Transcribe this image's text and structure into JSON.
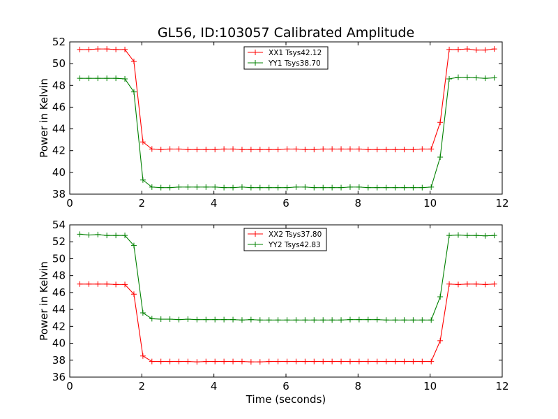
{
  "chart_data": [
    {
      "type": "line",
      "title": "GL56, ID:103057 Calibrated Amplitude",
      "xlabel": "",
      "ylabel": "Power in Kelvin",
      "xlim": [
        0,
        12
      ],
      "ylim": [
        38,
        52
      ],
      "xticks": [
        0,
        2,
        4,
        6,
        8,
        10,
        12
      ],
      "yticks": [
        38,
        40,
        42,
        44,
        46,
        48,
        50,
        52
      ],
      "legend_position": "top-center",
      "x": [
        0.28,
        0.53,
        0.78,
        1.03,
        1.28,
        1.53,
        1.78,
        2.03,
        2.28,
        2.53,
        2.78,
        3.03,
        3.28,
        3.53,
        3.78,
        4.03,
        4.28,
        4.53,
        4.78,
        5.03,
        5.28,
        5.53,
        5.78,
        6.03,
        6.28,
        6.53,
        6.78,
        7.03,
        7.28,
        7.53,
        7.78,
        8.03,
        8.28,
        8.53,
        8.78,
        9.03,
        9.28,
        9.53,
        9.78,
        10.03,
        10.28,
        10.53,
        10.78,
        11.03,
        11.28,
        11.53,
        11.78
      ],
      "series": [
        {
          "name": "XX1 Tsys42.12",
          "color": "#ff0000",
          "values": [
            51.3,
            51.3,
            51.35,
            51.35,
            51.3,
            51.3,
            50.2,
            42.8,
            42.15,
            42.1,
            42.15,
            42.15,
            42.1,
            42.1,
            42.1,
            42.1,
            42.15,
            42.15,
            42.1,
            42.1,
            42.1,
            42.1,
            42.1,
            42.15,
            42.15,
            42.1,
            42.1,
            42.15,
            42.15,
            42.15,
            42.15,
            42.15,
            42.1,
            42.1,
            42.1,
            42.1,
            42.1,
            42.1,
            42.15,
            42.15,
            44.6,
            51.3,
            51.3,
            51.35,
            51.25,
            51.25,
            51.35
          ]
        },
        {
          "name": "YY1 Tsys38.70",
          "color": "#008000",
          "values": [
            48.65,
            48.65,
            48.65,
            48.65,
            48.65,
            48.6,
            47.4,
            39.3,
            38.65,
            38.6,
            38.6,
            38.65,
            38.65,
            38.65,
            38.65,
            38.65,
            38.6,
            38.6,
            38.65,
            38.6,
            38.6,
            38.6,
            38.6,
            38.6,
            38.65,
            38.65,
            38.6,
            38.6,
            38.6,
            38.6,
            38.65,
            38.65,
            38.6,
            38.6,
            38.6,
            38.6,
            38.6,
            38.6,
            38.6,
            38.65,
            41.4,
            48.6,
            48.75,
            48.75,
            48.7,
            48.65,
            48.7
          ]
        }
      ]
    },
    {
      "type": "line",
      "title": "",
      "xlabel": "Time (seconds)",
      "ylabel": "Power in Kelvin",
      "xlim": [
        0,
        12
      ],
      "ylim": [
        36,
        54
      ],
      "xticks": [
        0,
        2,
        4,
        6,
        8,
        10,
        12
      ],
      "yticks": [
        36,
        38,
        40,
        42,
        44,
        46,
        48,
        50,
        52,
        54
      ],
      "legend_position": "top-center",
      "x": [
        0.28,
        0.53,
        0.78,
        1.03,
        1.28,
        1.53,
        1.78,
        2.03,
        2.28,
        2.53,
        2.78,
        3.03,
        3.28,
        3.53,
        3.78,
        4.03,
        4.28,
        4.53,
        4.78,
        5.03,
        5.28,
        5.53,
        5.78,
        6.03,
        6.28,
        6.53,
        6.78,
        7.03,
        7.28,
        7.53,
        7.78,
        8.03,
        8.28,
        8.53,
        8.78,
        9.03,
        9.28,
        9.53,
        9.78,
        10.03,
        10.28,
        10.53,
        10.78,
        11.03,
        11.28,
        11.53,
        11.78
      ],
      "series": [
        {
          "name": "XX2 Tsys37.80",
          "color": "#ff0000",
          "values": [
            47.0,
            47.0,
            47.0,
            47.0,
            46.95,
            46.95,
            45.8,
            38.5,
            37.85,
            37.85,
            37.85,
            37.85,
            37.85,
            37.8,
            37.85,
            37.85,
            37.85,
            37.85,
            37.85,
            37.8,
            37.8,
            37.85,
            37.85,
            37.85,
            37.85,
            37.85,
            37.85,
            37.85,
            37.85,
            37.85,
            37.85,
            37.85,
            37.85,
            37.85,
            37.85,
            37.85,
            37.85,
            37.85,
            37.85,
            37.85,
            40.3,
            47.0,
            46.95,
            47.0,
            47.0,
            46.95,
            47.0
          ]
        },
        {
          "name": "YY2 Tsys42.83",
          "color": "#008000",
          "values": [
            52.9,
            52.8,
            52.85,
            52.75,
            52.75,
            52.75,
            51.55,
            43.6,
            42.9,
            42.85,
            42.85,
            42.8,
            42.85,
            42.8,
            42.8,
            42.8,
            42.8,
            42.8,
            42.75,
            42.8,
            42.75,
            42.75,
            42.75,
            42.75,
            42.75,
            42.75,
            42.75,
            42.75,
            42.75,
            42.75,
            42.8,
            42.8,
            42.8,
            42.8,
            42.75,
            42.75,
            42.75,
            42.75,
            42.75,
            42.75,
            45.5,
            52.75,
            52.8,
            52.75,
            52.75,
            52.7,
            52.75
          ]
        }
      ]
    }
  ]
}
